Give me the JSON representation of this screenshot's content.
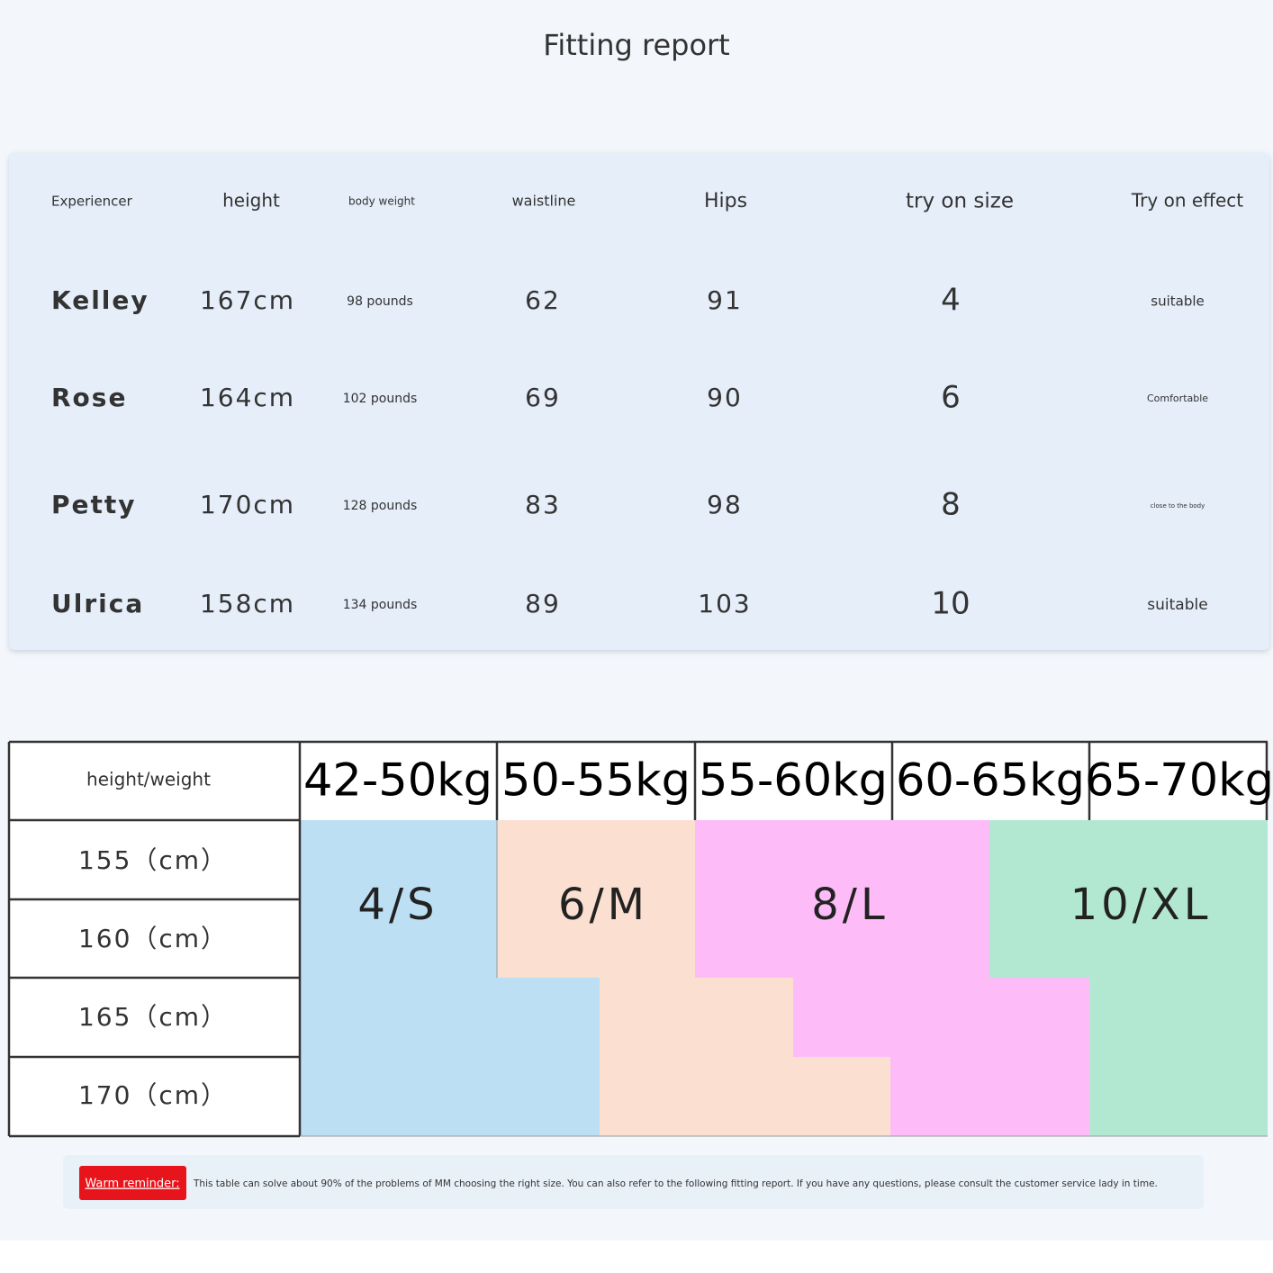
{
  "title": "Fitting report",
  "fitting_table": {
    "headers": [
      "Experiencer",
      "height",
      "body weight",
      "waistline",
      "Hips",
      "try on size",
      "Try on effect"
    ],
    "rows": [
      [
        "Kelley",
        "167cm",
        "98 pounds",
        "62",
        "91",
        "4",
        "suitable"
      ],
      [
        "Rose",
        "164cm",
        "102 pounds",
        "69",
        "90",
        "6",
        "Comfortable"
      ],
      [
        "Petty",
        "170cm",
        "128 pounds",
        "83",
        "98",
        "8",
        "close to the body"
      ],
      [
        "Ulrica",
        "158cm",
        "134 pounds",
        "89",
        "103",
        "10",
        "suitable"
      ]
    ]
  },
  "size_chart": {
    "corner": "height/weight",
    "columns": [
      "42-50kg",
      "50-55kg",
      "55-60kg",
      "60-65kg",
      "65-70kg"
    ],
    "rows": [
      "155（cm）",
      "160（cm）",
      "165（cm）",
      "170（cm）"
    ],
    "sizes": [
      "4/S",
      "6/M",
      "8/L",
      "10/XL"
    ]
  },
  "reminder": {
    "label": "Warm reminder:",
    "text": "This table can solve about 90% of the problems of MM choosing the right size. You can also refer to the following fitting report. If you have any questions, please consult the customer service lady in time."
  }
}
